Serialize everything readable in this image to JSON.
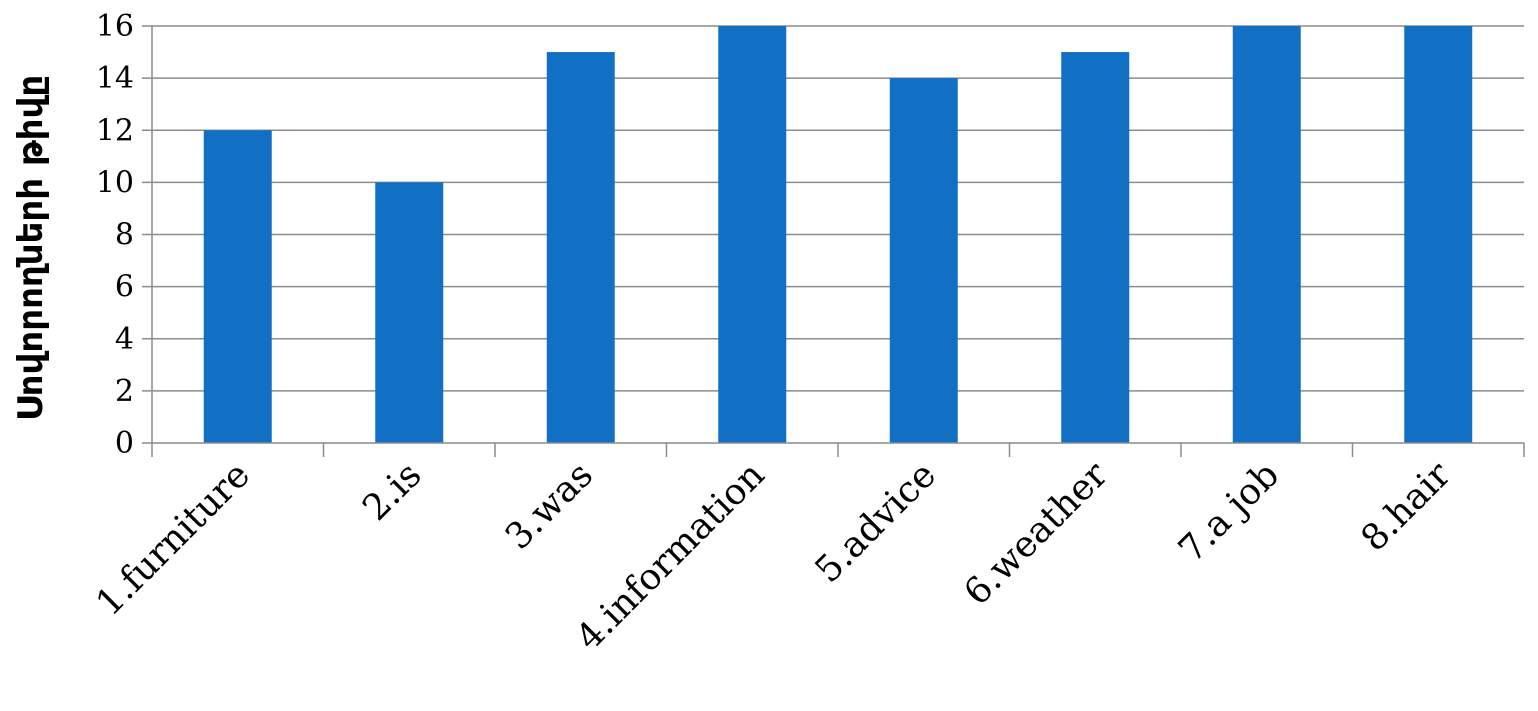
{
  "chart_data": {
    "type": "bar",
    "title": "",
    "xlabel": "",
    "ylabel": "Սովորողների թիվը",
    "categories": [
      "1.furniture",
      "2.is",
      "3.was",
      "4.information",
      "5.advice",
      "6.weather",
      "7.a job",
      "8.hair"
    ],
    "series": [
      {
        "values": [
          12,
          10,
          15,
          16,
          14,
          15,
          16,
          16
        ]
      }
    ],
    "ylim": [
      0,
      16
    ],
    "yticks": [
      0,
      2,
      4,
      6,
      8,
      10,
      12,
      14,
      16
    ],
    "grid": true,
    "legend": "none",
    "bar_color": "#1170C4",
    "grid_color": "#8C8C8C"
  }
}
